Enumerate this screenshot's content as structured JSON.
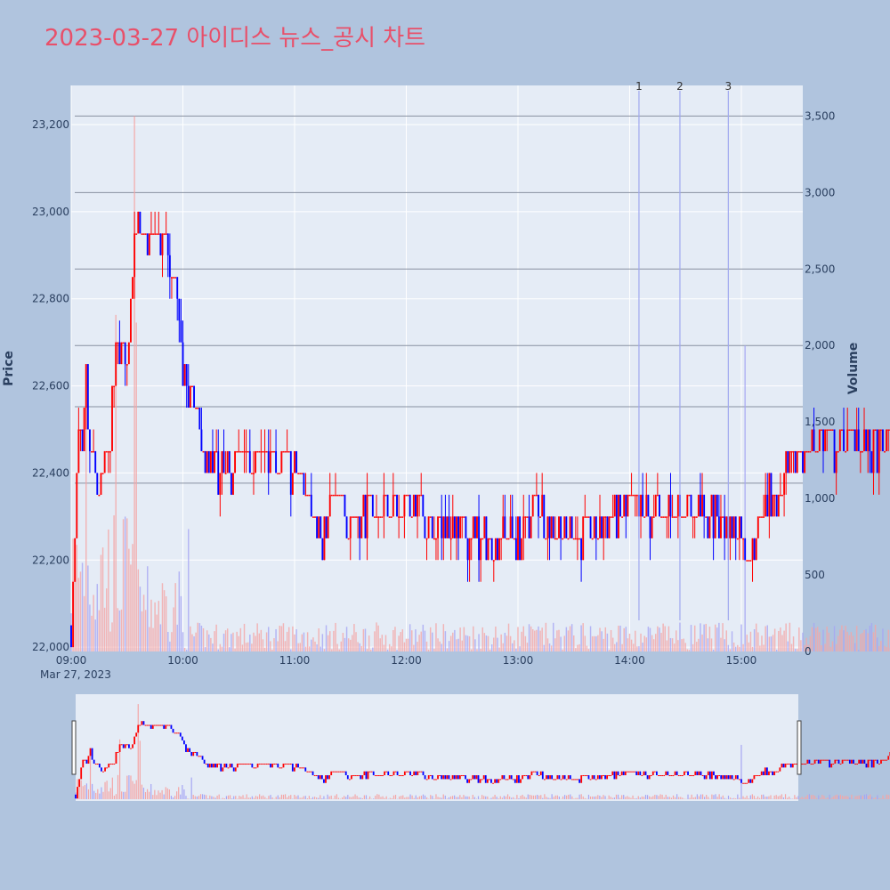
{
  "chart_data": {
    "type": "candlestick",
    "title": "2023-03-27 아이디스 뉴스_공시 차트",
    "ylabel": "Price",
    "y2label": "Volume",
    "date_label": "Mar 27, 2023",
    "ylim": [
      21990,
      23290
    ],
    "y2lim": [
      0,
      3700
    ],
    "price_ticks": [
      22000,
      22200,
      22400,
      22600,
      22800,
      23000,
      23200
    ],
    "volume_ticks": [
      0,
      500,
      1000,
      1500,
      2000,
      2500,
      3000,
      3500
    ],
    "time_ticks": [
      "09:00",
      "10:00",
      "11:00",
      "12:00",
      "13:00",
      "14:00",
      "15:00"
    ],
    "colors": {
      "up": "#ff0000",
      "down": "#0000ff",
      "up_volume": "#f4a6a6",
      "down_volume": "#a6a6f4",
      "news_line": "#a0a8f0",
      "hline": "#8890a0"
    },
    "news_markers": [
      {
        "label": "1",
        "time": "14:05"
      },
      {
        "label": "2",
        "time": "14:27"
      },
      {
        "label": "3",
        "time": "14:53"
      }
    ],
    "support_resistance_volumes": [
      1100,
      1600,
      2000,
      2500,
      3000,
      3500
    ]
  }
}
